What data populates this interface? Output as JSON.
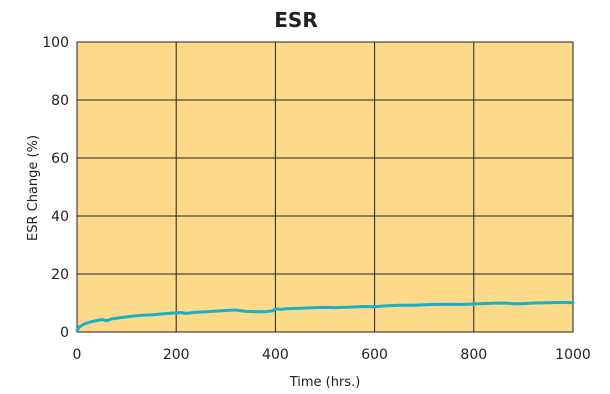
{
  "chart_data": {
    "type": "line",
    "title": "ESR",
    "xlabel": "Time (hrs.)",
    "ylabel": "ESR Change (%)",
    "xlim": [
      0,
      1000
    ],
    "ylim": [
      0,
      100
    ],
    "xticks": [
      0,
      200,
      400,
      600,
      800,
      1000
    ],
    "yticks": [
      0,
      20,
      40,
      60,
      80,
      100
    ],
    "grid": true,
    "plot_background": "#fdd98a",
    "grid_color": "#222222",
    "series": [
      {
        "color": "#1ab0c8",
        "x": [
          0,
          5,
          15,
          30,
          50,
          60,
          70,
          90,
          110,
          130,
          150,
          170,
          190,
          210,
          220,
          240,
          260,
          280,
          300,
          320,
          340,
          360,
          380,
          395,
          400,
          410,
          420,
          450,
          480,
          500,
          520,
          550,
          580,
          600,
          620,
          650,
          680,
          700,
          720,
          750,
          780,
          800,
          820,
          850,
          870,
          880,
          900,
          920,
          950,
          980,
          1000
        ],
        "y": [
          0.5,
          1.8,
          2.8,
          3.6,
          4.3,
          3.9,
          4.5,
          5.0,
          5.4,
          5.8,
          5.9,
          6.2,
          6.5,
          6.7,
          6.4,
          6.8,
          7.0,
          7.2,
          7.4,
          7.6,
          7.1,
          7.0,
          7.0,
          7.3,
          8.0,
          7.8,
          8.0,
          8.2,
          8.4,
          8.5,
          8.4,
          8.6,
          8.8,
          8.7,
          9.0,
          9.2,
          9.2,
          9.4,
          9.5,
          9.6,
          9.5,
          9.7,
          9.8,
          10.0,
          9.9,
          9.7,
          9.8,
          10.0,
          10.1,
          10.2,
          10.1
        ]
      }
    ]
  }
}
